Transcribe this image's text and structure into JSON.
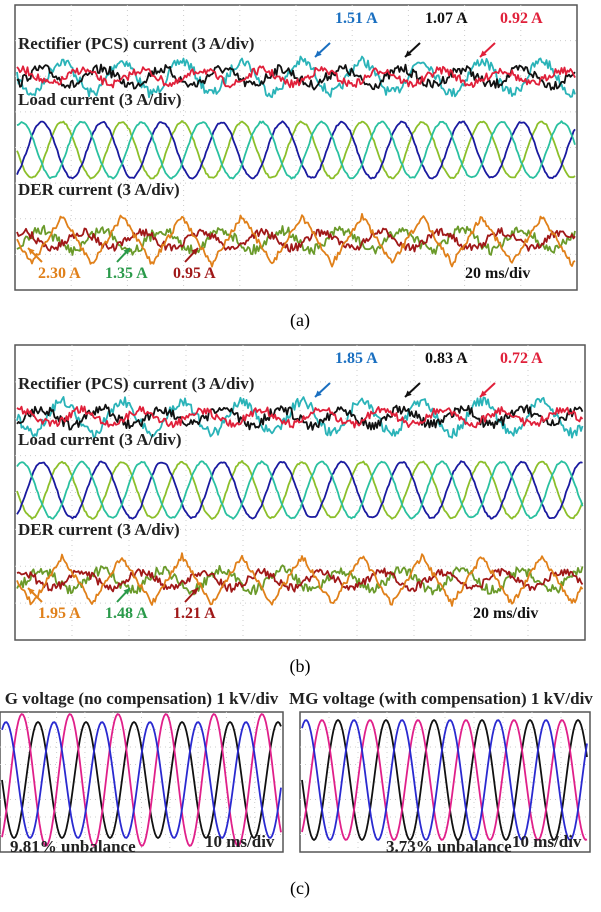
{
  "panels": [
    {
      "pcs_label": "Rectifier (PCS) current (3 A/div)",
      "pcs_values": [
        "1.51 A",
        "1.07 A",
        "0.92 A"
      ],
      "load_label": "Load current (3 A/div)",
      "der_label": "DER current (3 A/div)",
      "der_values": [
        "2.30 A",
        "1.35 A",
        "0.95 A"
      ],
      "time_div": "20 ms/div",
      "caption": "(a)"
    },
    {
      "pcs_label": "Rectifier (PCS) current (3 A/div)",
      "pcs_values": [
        "1.85 A",
        "0.83 A",
        "0.72 A"
      ],
      "load_label": "Load current (3 A/div)",
      "der_label": "DER current (3 A/div)",
      "der_values": [
        "1.95 A",
        "1.48 A",
        "1.21 A"
      ],
      "time_div": "20 ms/div",
      "caption": "(b)"
    }
  ],
  "voltage_panels": [
    {
      "title": "G voltage (no compensation) 1 kV/div",
      "unbalance": "9.81% unbalance",
      "time_div": "10 ms/div"
    },
    {
      "title": "MG voltage (with compensation) 1 kV/div",
      "unbalance": "3.73% unbalance",
      "time_div": "10 ms/div"
    }
  ],
  "caption_c": "(c)"
}
